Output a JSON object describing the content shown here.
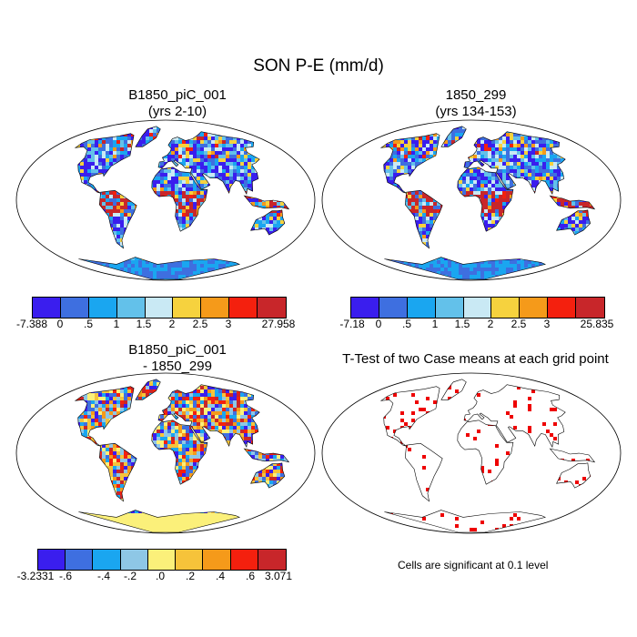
{
  "title": "SON P-E (mm/d)",
  "panels": [
    {
      "title_line1": "B1850_piC_001",
      "title_line2": "(yrs 2-10)"
    },
    {
      "title_line1": "1850_299",
      "title_line2": "(yrs 134-153)"
    },
    {
      "title_line1": "B1850_piC_001",
      "title_line2": "- 1850_299"
    },
    {
      "title_line1": "T-Test of two Case means at each grid point",
      "title_line2": ""
    }
  ],
  "colorbars": {
    "top_left": {
      "colors": [
        "#3a1eee",
        "#3e6fe0",
        "#1aa6f0",
        "#63c1ea",
        "#c9e9f4",
        "#f6d23e",
        "#f59a1a",
        "#f4200e",
        "#c8262a"
      ],
      "labels": [
        "-7.388",
        "0",
        ".5",
        "1",
        "1.5",
        "2",
        "2.5",
        "3",
        "27.958"
      ]
    },
    "top_right": {
      "colors": [
        "#3a1eee",
        "#3e6fe0",
        "#1aa6f0",
        "#63c1ea",
        "#c9e9f4",
        "#f6d23e",
        "#f59a1a",
        "#f4200e",
        "#c8262a"
      ],
      "labels": [
        "-7.18",
        "0",
        ".5",
        "1",
        "1.5",
        "2",
        "2.5",
        "3",
        "25.835"
      ]
    },
    "bottom_left": {
      "colors": [
        "#3a1eee",
        "#3e6fe0",
        "#1aa6f0",
        "#8ec7e6",
        "#fbf07a",
        "#f6c33a",
        "#f59a1a",
        "#f4200e",
        "#c8262a"
      ],
      "labels": [
        "-3.2331",
        "-.6",
        "-.4",
        "-.2",
        ".0",
        ".2",
        ".4",
        ".6",
        "3.071"
      ]
    }
  },
  "significance_note": "Cells are significant at 0.1 level",
  "colors": {
    "ocean": "#ffffff",
    "land_dry": "#3a1eee",
    "land_mid": "#3e6fe0",
    "land_wet": "#c8262a",
    "significant": "#ee0000"
  }
}
